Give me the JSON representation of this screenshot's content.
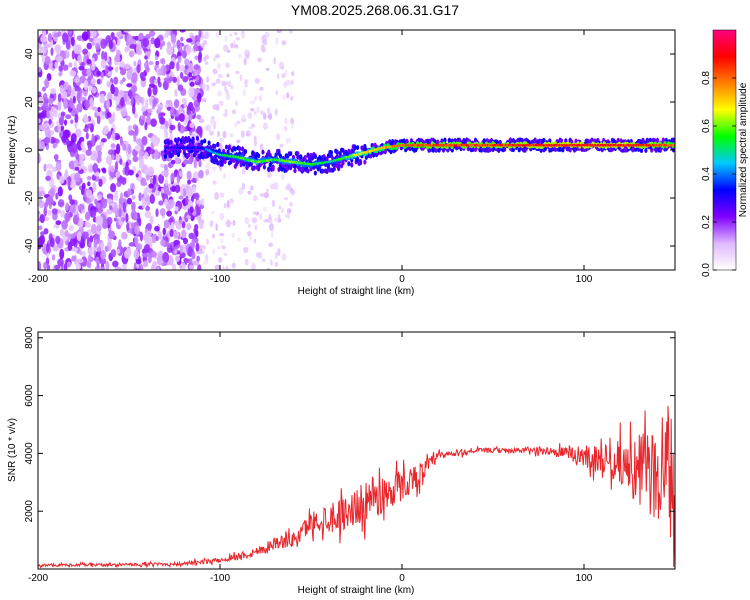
{
  "title": "YM08.2025.268.06.31.G17",
  "chart_data": [
    {
      "type": "heatmap",
      "title": "YM08.2025.268.06.31.G17",
      "xlabel": "Height of straight line (km)",
      "ylabel": "Frequency (Hz)",
      "xlim": [
        -200,
        150
      ],
      "ylim": [
        -50,
        50
      ],
      "x_ticks": [
        -200,
        -100,
        0,
        100
      ],
      "x_tick_labels": [
        "-200",
        "-100",
        "0",
        "100"
      ],
      "y_ticks": [
        -40,
        -20,
        0,
        20,
        40
      ],
      "y_tick_labels": [
        "-40",
        "-20",
        "0",
        "20",
        "40"
      ],
      "colorbar": {
        "label": "Normalized spectral amplitude",
        "range": [
          0,
          1
        ],
        "ticks": [
          0,
          0.2,
          0.4,
          0.6,
          0.8
        ],
        "tick_labels": [
          "0.0",
          "0.2",
          "0.4",
          "0.6",
          "0.8"
        ],
        "colormap": [
          "#ffffff",
          "#e0b8ff",
          "#8000ff",
          "#0000ff",
          "#00c8ff",
          "#00ff00",
          "#ffff00",
          "#ff8000",
          "#ff0000",
          "#ff0080"
        ]
      },
      "ridge": {
        "x": [
          -130,
          -110,
          -100,
          -90,
          -80,
          -70,
          -60,
          -50,
          -40,
          -30,
          -20,
          -10,
          0,
          20,
          50,
          80,
          100,
          120,
          140,
          150
        ],
        "frequency": [
          1,
          1,
          -2,
          -3,
          -5,
          -4,
          -5,
          -6,
          -5,
          -3,
          -1,
          1,
          2,
          2,
          2,
          2,
          2,
          2,
          2,
          2
        ],
        "amplitude": [
          0.3,
          0.35,
          0.5,
          0.55,
          0.6,
          0.55,
          0.6,
          0.55,
          0.5,
          0.6,
          0.7,
          0.75,
          0.8,
          0.85,
          0.85,
          0.9,
          0.9,
          0.9,
          0.85,
          0.8
        ]
      },
      "noise_region": {
        "x_range": [
          -200,
          -110
        ],
        "sparse_x_range": [
          -110,
          -60
        ]
      }
    },
    {
      "type": "line",
      "xlabel": "Height of straight line (km)",
      "ylabel": "SNR (10 * v/v)",
      "xlim": [
        -200,
        150
      ],
      "ylim": [
        0,
        8200
      ],
      "x_ticks": [
        -200,
        -100,
        0,
        100
      ],
      "x_tick_labels": [
        "-200",
        "-100",
        "0",
        "100"
      ],
      "y_ticks": [
        2000,
        4000,
        6000,
        8000
      ],
      "y_tick_labels": [
        "2000",
        "4000",
        "6000",
        "8000"
      ],
      "color": "#e8262b",
      "envelope": {
        "x": [
          -200,
          -150,
          -120,
          -100,
          -80,
          -70,
          -60,
          -50,
          -40,
          -30,
          -20,
          -10,
          0,
          10,
          20,
          40,
          60,
          80,
          90,
          100,
          110,
          120,
          130,
          140,
          150
        ],
        "mean": [
          130,
          150,
          180,
          300,
          600,
          900,
          1000,
          1600,
          1800,
          2000,
          2300,
          2600,
          2900,
          3300,
          3900,
          4100,
          4100,
          4100,
          4000,
          3900,
          3800,
          3700,
          3400,
          3300,
          3200
        ],
        "amplitude": [
          80,
          90,
          100,
          150,
          300,
          400,
          450,
          700,
          1000,
          1100,
          1300,
          1300,
          1000,
          700,
          300,
          150,
          150,
          250,
          450,
          700,
          900,
          1400,
          2200,
          3000,
          3800
        ]
      }
    }
  ]
}
